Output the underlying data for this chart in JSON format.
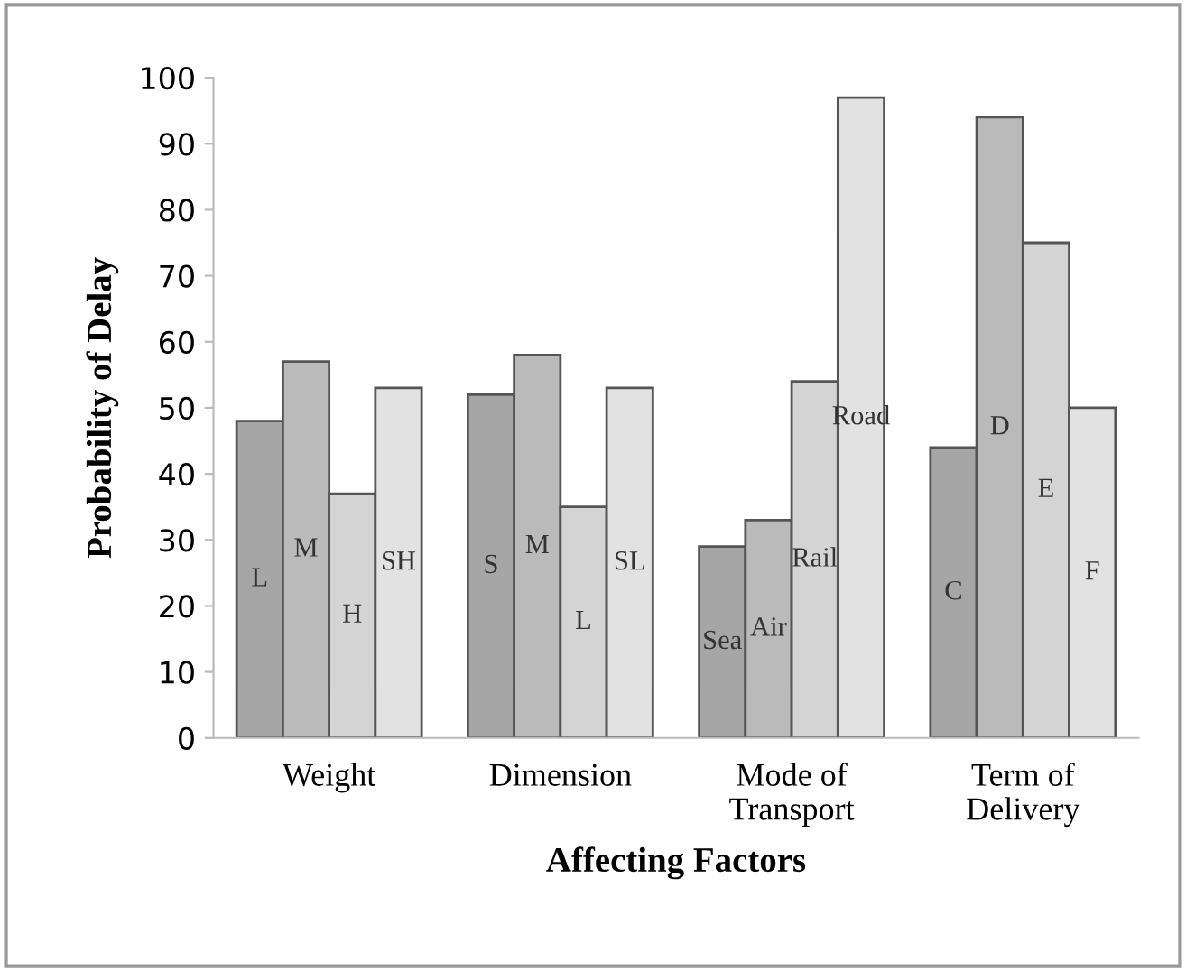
{
  "chart_data": {
    "type": "bar",
    "xlabel": "Affecting Factors",
    "ylabel": "Probability of Delay",
    "categories": [
      "Weight",
      "Dimension",
      "Mode of\nTransport",
      "Term of\nDelivery"
    ],
    "series": [
      {
        "color": "#a6a6a6",
        "values": [
          48,
          52,
          29,
          44
        ],
        "value_labels": [
          "L",
          "S",
          "Sea",
          "C"
        ]
      },
      {
        "color": "#bababa",
        "values": [
          57,
          58,
          33,
          94
        ],
        "value_labels": [
          "M",
          "M",
          "Air",
          "D"
        ]
      },
      {
        "color": "#d4d4d4",
        "values": [
          37,
          35,
          54,
          75
        ],
        "value_labels": [
          "H",
          "L",
          "Rail",
          "E"
        ]
      },
      {
        "color": "#e2e2e2",
        "values": [
          53,
          53,
          97,
          50
        ],
        "value_labels": [
          "SH",
          "SL",
          "Road",
          "F"
        ]
      }
    ],
    "ylim": [
      0,
      100
    ],
    "yticks": [
      0,
      10,
      20,
      30,
      40,
      50,
      60,
      70,
      80,
      90,
      100
    ],
    "grid": false,
    "legend": false
  }
}
